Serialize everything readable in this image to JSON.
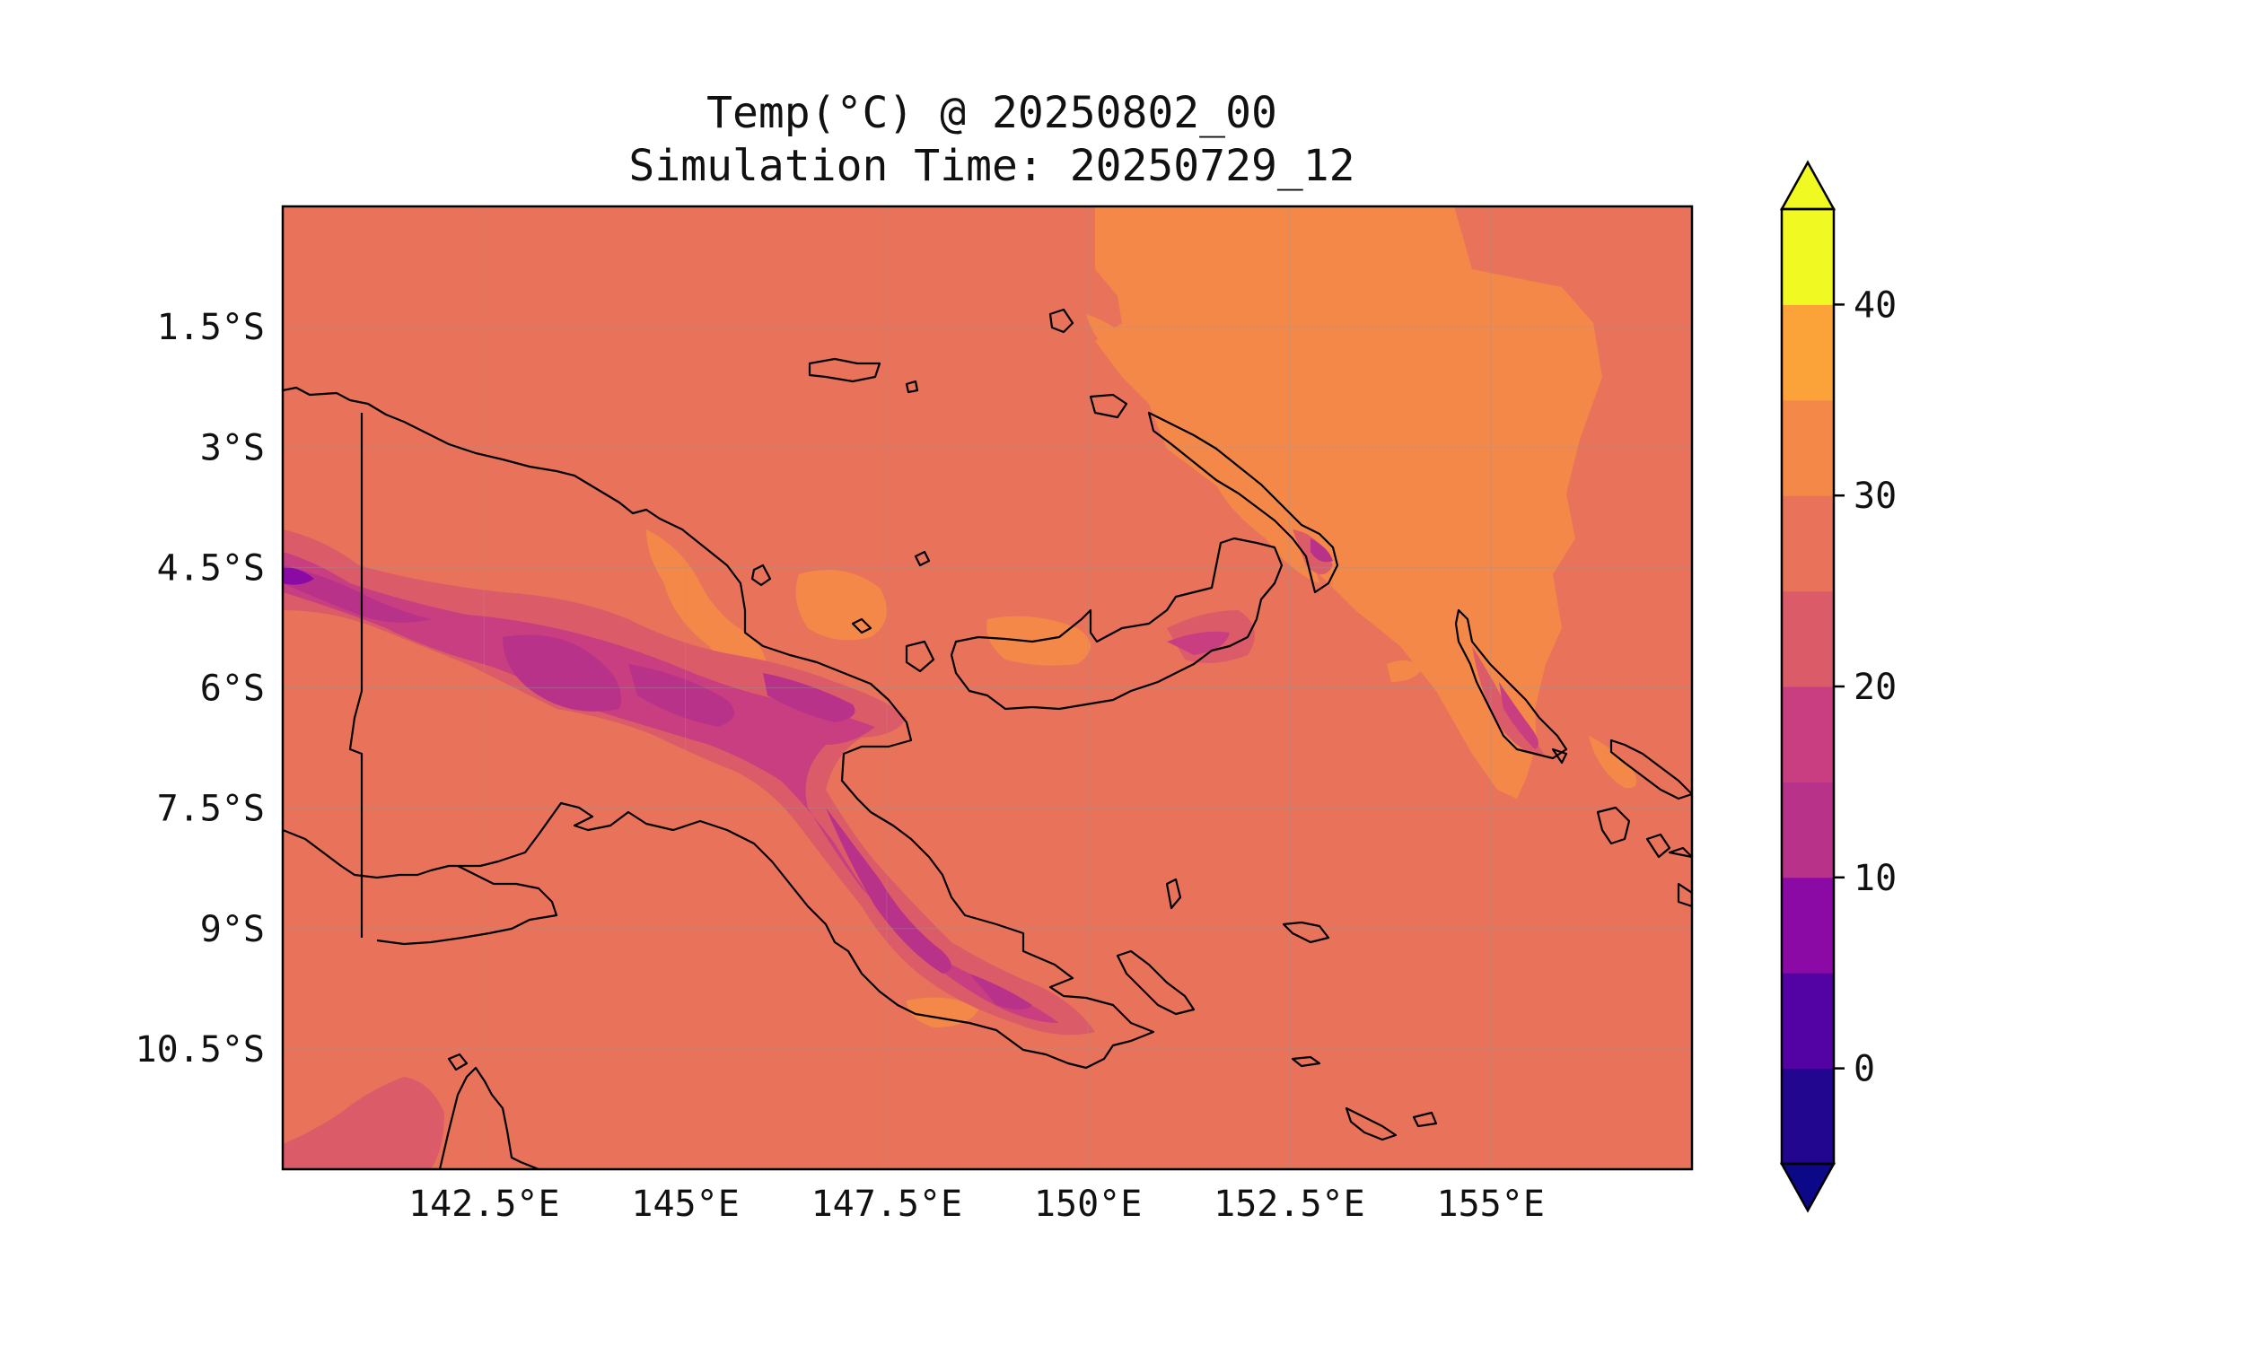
{
  "title": {
    "line1": "Temp(°C) @ 20250802_00",
    "line2": "Simulation Time: 20250729_12"
  },
  "map": {
    "lon_range": [
      140.0,
      157.5
    ],
    "lat_range": [
      -12.0,
      0.0
    ],
    "lon_ticks": [
      {
        "value": 142.5,
        "label": "142.5°E"
      },
      {
        "value": 145.0,
        "label": "145°E"
      },
      {
        "value": 147.5,
        "label": "147.5°E"
      },
      {
        "value": 150.0,
        "label": "150°E"
      },
      {
        "value": 152.5,
        "label": "152.5°E"
      },
      {
        "value": 155.0,
        "label": "155°E"
      }
    ],
    "lat_ticks": [
      {
        "value": -1.5,
        "label": "1.5°S"
      },
      {
        "value": -3.0,
        "label": "3°S"
      },
      {
        "value": -4.5,
        "label": "4.5°S"
      },
      {
        "value": -6.0,
        "label": "6°S"
      },
      {
        "value": -7.5,
        "label": "7.5°S"
      },
      {
        "value": -9.0,
        "label": "9°S"
      },
      {
        "value": -10.5,
        "label": "10.5°S"
      }
    ],
    "background_level_color": "#e8735a"
  },
  "colorbar": {
    "levels": [
      -5,
      0,
      5,
      10,
      15,
      20,
      25,
      30,
      35,
      40,
      45
    ],
    "colors": [
      "#220690",
      "#5302a3",
      "#8b0aa5",
      "#b83289",
      "#c93e80",
      "#db5c68",
      "#e8735a",
      "#f48849",
      "#fba238",
      "#f0f921"
    ],
    "under_color": "#0d0887",
    "over_color": "#f0f921",
    "extend": "both",
    "ticks": [
      {
        "value": 0,
        "label": "0"
      },
      {
        "value": 10,
        "label": "10"
      },
      {
        "value": 20,
        "label": "20"
      },
      {
        "value": 30,
        "label": "30"
      },
      {
        "value": 40,
        "label": "40"
      }
    ]
  }
}
